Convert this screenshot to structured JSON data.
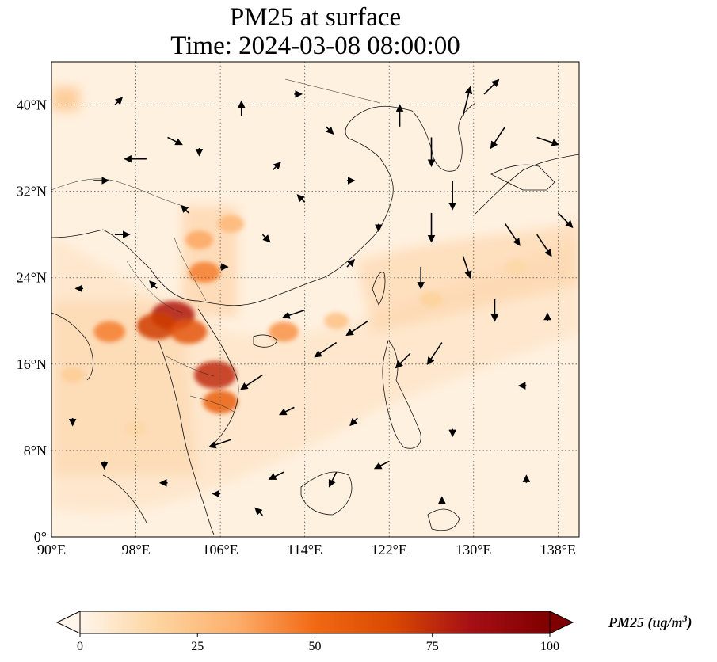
{
  "title_line1": "PM25 at surface",
  "title_line2": "Time: 2024-03-08 08:00:00",
  "map": {
    "lon_range": [
      90,
      140
    ],
    "lat_range": [
      0,
      44
    ],
    "lon_ticks": [
      {
        "value": 90,
        "label": "90°E"
      },
      {
        "value": 98,
        "label": "98°E"
      },
      {
        "value": 106,
        "label": "106°E"
      },
      {
        "value": 114,
        "label": "114°E"
      },
      {
        "value": 122,
        "label": "122°E"
      },
      {
        "value": 130,
        "label": "130°E"
      },
      {
        "value": 138,
        "label": "138°E"
      }
    ],
    "lat_ticks": [
      {
        "value": 0,
        "label": "0°"
      },
      {
        "value": 8,
        "label": "8°N"
      },
      {
        "value": 16,
        "label": "16°N"
      },
      {
        "value": 24,
        "label": "24°N"
      },
      {
        "value": 32,
        "label": "32°N"
      },
      {
        "value": 40,
        "label": "40°N"
      }
    ],
    "gridlines": "dotted"
  },
  "colorbar": {
    "label_main": "PM25 (ug/m",
    "label_sup": "3",
    "label_close": ")",
    "min": 0,
    "max": 100,
    "extend": "both",
    "colormap_stops": [
      "#fff5eb",
      "#fdd49e",
      "#fdae6b",
      "#f16913",
      "#d94801",
      "#a50f15",
      "#7f0000"
    ],
    "ticks": [
      {
        "value": 0,
        "label": "0"
      },
      {
        "value": 25,
        "label": "25"
      },
      {
        "value": 50,
        "label": "50"
      },
      {
        "value": 75,
        "label": "75"
      },
      {
        "value": 100,
        "label": "100"
      }
    ]
  },
  "pm25_hotspots": [
    {
      "lon": 101.5,
      "lat": 20.5,
      "value": 80
    },
    {
      "lon": 100.0,
      "lat": 19.5,
      "value": 70
    },
    {
      "lon": 103.0,
      "lat": 19.0,
      "value": 60
    },
    {
      "lon": 105.5,
      "lat": 15.0,
      "value": 75
    },
    {
      "lon": 106.0,
      "lat": 12.5,
      "value": 55
    },
    {
      "lon": 104.5,
      "lat": 24.5,
      "value": 45
    },
    {
      "lon": 104.0,
      "lat": 27.5,
      "value": 35
    },
    {
      "lon": 107.0,
      "lat": 29.0,
      "value": 30
    },
    {
      "lon": 112.0,
      "lat": 19.0,
      "value": 40
    },
    {
      "lon": 95.5,
      "lat": 19.0,
      "value": 45
    },
    {
      "lon": 117.0,
      "lat": 20.0,
      "value": 25
    },
    {
      "lon": 126.0,
      "lat": 22.0,
      "value": 18
    },
    {
      "lon": 134.0,
      "lat": 25.0,
      "value": 15
    },
    {
      "lon": 92.0,
      "lat": 15.0,
      "value": 20
    },
    {
      "lon": 98.0,
      "lat": 10.0,
      "value": 15
    }
  ],
  "wind_vectors": [
    {
      "lon": 99,
      "lat": 35,
      "u": -3,
      "v": 0
    },
    {
      "lon": 101,
      "lat": 37,
      "u": 2,
      "v": -1
    },
    {
      "lon": 108,
      "lat": 39,
      "u": 0,
      "v": 2
    },
    {
      "lon": 116,
      "lat": 38,
      "u": 1,
      "v": -1
    },
    {
      "lon": 123,
      "lat": 38,
      "u": 0,
      "v": 3
    },
    {
      "lon": 126,
      "lat": 37,
      "u": 0,
      "v": -4
    },
    {
      "lon": 129,
      "lat": 39,
      "u": 1,
      "v": 4
    },
    {
      "lon": 133,
      "lat": 38,
      "u": -2,
      "v": -3
    },
    {
      "lon": 136,
      "lat": 37,
      "u": 3,
      "v": -1
    },
    {
      "lon": 128,
      "lat": 33,
      "u": 0,
      "v": -4
    },
    {
      "lon": 126,
      "lat": 30,
      "u": 0,
      "v": -4
    },
    {
      "lon": 133,
      "lat": 29,
      "u": 2,
      "v": -3
    },
    {
      "lon": 136,
      "lat": 28,
      "u": 2,
      "v": -3
    },
    {
      "lon": 138,
      "lat": 30,
      "u": 2,
      "v": -2
    },
    {
      "lon": 125,
      "lat": 25,
      "u": 0,
      "v": -3
    },
    {
      "lon": 129,
      "lat": 26,
      "u": 1,
      "v": -3
    },
    {
      "lon": 132,
      "lat": 22,
      "u": 0,
      "v": -3
    },
    {
      "lon": 127,
      "lat": 18,
      "u": -2,
      "v": -3
    },
    {
      "lon": 124,
      "lat": 17,
      "u": -2,
      "v": -2
    },
    {
      "lon": 120,
      "lat": 20,
      "u": -3,
      "v": -2
    },
    {
      "lon": 117,
      "lat": 18,
      "u": -3,
      "v": -2
    },
    {
      "lon": 114,
      "lat": 21,
      "u": -3,
      "v": -1
    },
    {
      "lon": 110,
      "lat": 15,
      "u": -3,
      "v": -2
    },
    {
      "lon": 113,
      "lat": 12,
      "u": -2,
      "v": -1
    },
    {
      "lon": 107,
      "lat": 9,
      "u": -3,
      "v": -1
    },
    {
      "lon": 119,
      "lat": 11,
      "u": -1,
      "v": -1
    },
    {
      "lon": 122,
      "lat": 7,
      "u": -2,
      "v": -1
    },
    {
      "lon": 117,
      "lat": 6,
      "u": -1,
      "v": -2
    },
    {
      "lon": 112,
      "lat": 6,
      "u": -2,
      "v": -1
    },
    {
      "lon": 96,
      "lat": 28,
      "u": 2,
      "v": 0
    },
    {
      "lon": 94,
      "lat": 33,
      "u": 2,
      "v": 0
    },
    {
      "lon": 103,
      "lat": 30,
      "u": -1,
      "v": 1
    },
    {
      "lon": 106,
      "lat": 25,
      "u": 1,
      "v": 0
    },
    {
      "lon": 110,
      "lat": 28,
      "u": 1,
      "v": -1
    },
    {
      "lon": 114,
      "lat": 31,
      "u": -1,
      "v": 1
    },
    {
      "lon": 118,
      "lat": 33,
      "u": 1,
      "v": 0
    },
    {
      "lon": 100,
      "lat": 23,
      "u": -1,
      "v": 1
    },
    {
      "lon": 93,
      "lat": 23,
      "u": -1,
      "v": 0
    },
    {
      "lon": 92,
      "lat": 11,
      "u": 0,
      "v": -1
    },
    {
      "lon": 95,
      "lat": 7,
      "u": 0,
      "v": -1
    },
    {
      "lon": 101,
      "lat": 5,
      "u": -1,
      "v": 0
    },
    {
      "lon": 106,
      "lat": 4,
      "u": -1,
      "v": 0
    },
    {
      "lon": 110,
      "lat": 2,
      "u": -1,
      "v": 1
    },
    {
      "lon": 128,
      "lat": 10,
      "u": 0,
      "v": -1
    },
    {
      "lon": 135,
      "lat": 14,
      "u": -1,
      "v": 0
    },
    {
      "lon": 135,
      "lat": 5,
      "u": 0,
      "v": 1
    },
    {
      "lon": 127,
      "lat": 3,
      "u": 0,
      "v": 1
    },
    {
      "lon": 137,
      "lat": 20,
      "u": 0,
      "v": 1
    },
    {
      "lon": 121,
      "lat": 29,
      "u": 0,
      "v": -1
    },
    {
      "lon": 118,
      "lat": 25,
      "u": 1,
      "v": 1
    },
    {
      "lon": 111,
      "lat": 34,
      "u": 1,
      "v": 1
    },
    {
      "lon": 104,
      "lat": 36,
      "u": 0,
      "v": -1
    },
    {
      "lon": 96,
      "lat": 40,
      "u": 1,
      "v": 1
    },
    {
      "lon": 113,
      "lat": 41,
      "u": 1,
      "v": 0
    },
    {
      "lon": 131,
      "lat": 41,
      "u": 2,
      "v": 2
    }
  ]
}
